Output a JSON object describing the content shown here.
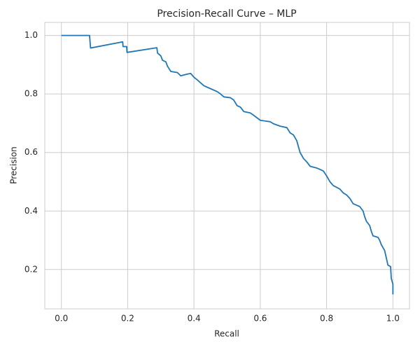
{
  "chart_data": {
    "type": "line",
    "title": "Precision-Recall Curve – MLP",
    "xlabel": "Recall",
    "ylabel": "Precision",
    "x": [
      0,
      0.085,
      0.088,
      0.185,
      0.186,
      0.197,
      0.198,
      0.288,
      0.29,
      0.3,
      0.305,
      0.315,
      0.32,
      0.33,
      0.35,
      0.36,
      0.38,
      0.39,
      0.4,
      0.41,
      0.42,
      0.43,
      0.45,
      0.47,
      0.48,
      0.49,
      0.51,
      0.52,
      0.53,
      0.54,
      0.55,
      0.57,
      0.58,
      0.6,
      0.63,
      0.64,
      0.66,
      0.68,
      0.69,
      0.7,
      0.71,
      0.715,
      0.72,
      0.73,
      0.74,
      0.75,
      0.77,
      0.79,
      0.8,
      0.81,
      0.82,
      0.84,
      0.85,
      0.86,
      0.87,
      0.88,
      0.9,
      0.91,
      0.915,
      0.92,
      0.93,
      0.935,
      0.94,
      0.955,
      0.96,
      0.965,
      0.975,
      0.98,
      0.985,
      0.993,
      0.995,
      1.0,
      1.0
    ],
    "values": [
      1.0,
      1.0,
      0.957,
      0.978,
      0.962,
      0.962,
      0.942,
      0.958,
      0.94,
      0.93,
      0.915,
      0.91,
      0.895,
      0.877,
      0.873,
      0.862,
      0.868,
      0.87,
      0.857,
      0.848,
      0.838,
      0.828,
      0.818,
      0.808,
      0.8,
      0.79,
      0.787,
      0.779,
      0.76,
      0.755,
      0.74,
      0.735,
      0.727,
      0.71,
      0.705,
      0.698,
      0.69,
      0.685,
      0.667,
      0.66,
      0.64,
      0.62,
      0.6,
      0.58,
      0.568,
      0.553,
      0.547,
      0.537,
      0.52,
      0.5,
      0.487,
      0.475,
      0.462,
      0.455,
      0.443,
      0.425,
      0.415,
      0.4,
      0.38,
      0.365,
      0.35,
      0.33,
      0.315,
      0.31,
      0.3,
      0.285,
      0.265,
      0.24,
      0.215,
      0.21,
      0.17,
      0.15,
      0.115
    ],
    "color": "#1f77b4",
    "xlim": [
      -0.05,
      1.05
    ],
    "ylim": [
      0.0655,
      1.0445
    ],
    "xticks": [
      {
        "value": 0,
        "label": "0.0"
      },
      0.2,
      0.4,
      0.6,
      0.8,
      {
        "value": 1,
        "label": "1.0"
      }
    ],
    "yticks": [
      0.2,
      0.4,
      0.6,
      0.8,
      {
        "value": 1,
        "label": "1.0"
      }
    ],
    "grid": true
  }
}
